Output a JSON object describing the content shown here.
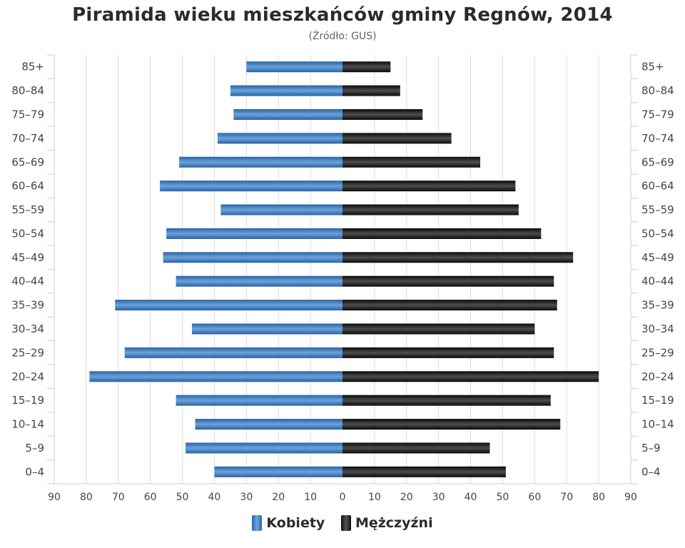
{
  "chart_data": {
    "type": "bar",
    "orientation": "horizontal",
    "title": "Piramida wieku mieszkańców gminy Regnów, 2014",
    "subtitle": "(Źródło: GUS)",
    "categories": [
      "85+",
      "80–84",
      "75–79",
      "70–74",
      "65–69",
      "60–64",
      "55–59",
      "50–54",
      "45–49",
      "40–44",
      "35–39",
      "30–34",
      "25–29",
      "20–24",
      "15–19",
      "10–14",
      "5–9",
      "0–4"
    ],
    "series": [
      {
        "name": "Kobiety",
        "color": "#3f7fc4",
        "values": [
          30,
          35,
          34,
          39,
          51,
          57,
          38,
          55,
          56,
          52,
          71,
          47,
          68,
          79,
          52,
          46,
          49,
          40
        ]
      },
      {
        "name": "Mężczyźni",
        "color": "#1a1a1a",
        "values": [
          15,
          18,
          25,
          34,
          43,
          54,
          55,
          62,
          72,
          66,
          67,
          60,
          66,
          80,
          65,
          68,
          46,
          51
        ]
      }
    ],
    "xlim": [
      -90,
      90
    ],
    "x_tick_labels": [
      "90",
      "80",
      "70",
      "60",
      "50",
      "40",
      "30",
      "20",
      "10",
      "0",
      "10",
      "20",
      "30",
      "40",
      "50",
      "60",
      "70",
      "80",
      "90"
    ],
    "grid": true,
    "legend_position": "bottom"
  }
}
